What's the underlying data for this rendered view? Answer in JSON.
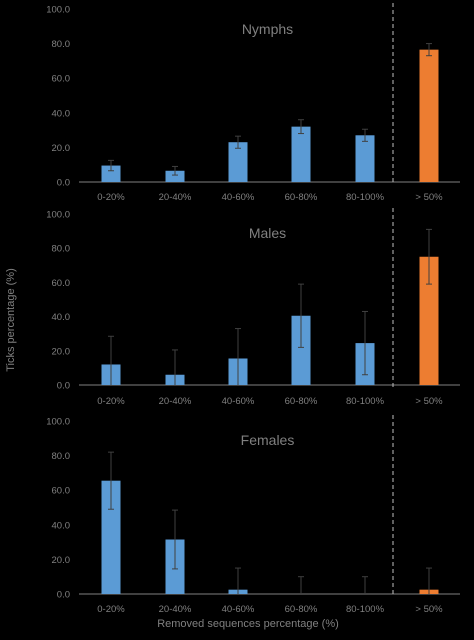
{
  "figure": {
    "ylabel": "Ticks percentage (%)",
    "xlabel": "Removed sequences percentage (%)"
  },
  "colors": {
    "background": "#000000",
    "axis_text": "#808080",
    "bar_blue": "#5b9bd5",
    "bar_orange": "#ed7d31",
    "divider": "#bfbfbf"
  },
  "chart_data": [
    {
      "type": "bar",
      "title": "Nymphs",
      "categories": [
        "0-20%",
        "20-40%",
        "40-60%",
        "60-80%",
        "80-100%",
        "> 50%"
      ],
      "values": [
        9.5,
        6.5,
        23,
        32,
        27,
        76.5
      ],
      "errors": [
        3,
        2.5,
        3.5,
        4,
        3.5,
        3.5
      ],
      "bar_colors": [
        "blue",
        "blue",
        "blue",
        "blue",
        "blue",
        "orange"
      ],
      "ylim": [
        0,
        100
      ],
      "yticks": [
        "0.0",
        "20.0",
        "40.0",
        "60.0",
        "80.0",
        "100.0"
      ],
      "grid": false,
      "divider_between": [
        4,
        5
      ]
    },
    {
      "type": "bar",
      "title": "Males",
      "categories": [
        "0-20%",
        "20-40%",
        "40-60%",
        "60-80%",
        "80-100%",
        "> 50%"
      ],
      "values": [
        12,
        6,
        15.5,
        40.5,
        24.5,
        75
      ],
      "errors": [
        16.5,
        14.5,
        17.5,
        18.5,
        18.5,
        16
      ],
      "bar_colors": [
        "blue",
        "blue",
        "blue",
        "blue",
        "blue",
        "orange"
      ],
      "ylim": [
        0,
        100
      ],
      "yticks": [
        "0.0",
        "20.0",
        "40.0",
        "60.0",
        "80.0",
        "100.0"
      ],
      "grid": false,
      "divider_between": [
        4,
        5
      ]
    },
    {
      "type": "bar",
      "title": "Females",
      "categories": [
        "0-20%",
        "20-40%",
        "40-60%",
        "60-80%",
        "80-100%",
        "> 50%"
      ],
      "values": [
        65.5,
        31.5,
        2.5,
        0,
        0,
        2.5
      ],
      "errors": [
        16.5,
        17,
        12.5,
        10,
        10,
        12.5
      ],
      "bar_colors": [
        "blue",
        "blue",
        "blue",
        "blue",
        "blue",
        "orange"
      ],
      "ylim": [
        0,
        100
      ],
      "yticks": [
        "0.0",
        "20.0",
        "40.0",
        "60.0",
        "80.0",
        "100.0"
      ],
      "grid": false,
      "divider_between": [
        4,
        5
      ]
    }
  ]
}
